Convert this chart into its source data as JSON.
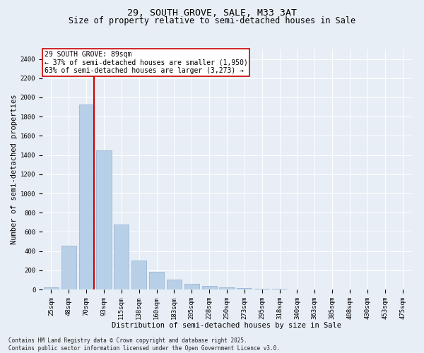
{
  "title": "29, SOUTH GROVE, SALE, M33 3AT",
  "subtitle": "Size of property relative to semi-detached houses in Sale",
  "xlabel": "Distribution of semi-detached houses by size in Sale",
  "ylabel": "Number of semi-detached properties",
  "footer": "Contains HM Land Registry data © Crown copyright and database right 2025.\nContains public sector information licensed under the Open Government Licence v3.0.",
  "categories": [
    "25sqm",
    "48sqm",
    "70sqm",
    "93sqm",
    "115sqm",
    "138sqm",
    "160sqm",
    "183sqm",
    "205sqm",
    "228sqm",
    "250sqm",
    "273sqm",
    "295sqm",
    "318sqm",
    "340sqm",
    "363sqm",
    "385sqm",
    "408sqm",
    "430sqm",
    "453sqm",
    "475sqm"
  ],
  "values": [
    20,
    455,
    1930,
    1450,
    675,
    305,
    185,
    100,
    58,
    35,
    25,
    15,
    10,
    5,
    2,
    1,
    1,
    0,
    0,
    0,
    0
  ],
  "bar_color": "#b8cfe8",
  "bar_edge_color": "#8fb0d4",
  "vline_color": "#cc0000",
  "vline_x_index": 2,
  "annotation_title": "29 SOUTH GROVE: 89sqm",
  "annotation_line1": "← 37% of semi-detached houses are smaller (1,950)",
  "annotation_line2": "63% of semi-detached houses are larger (3,273) →",
  "ylim": [
    0,
    2500
  ],
  "yticks": [
    0,
    200,
    400,
    600,
    800,
    1000,
    1200,
    1400,
    1600,
    1800,
    2000,
    2200,
    2400
  ],
  "bg_color": "#e8eef5",
  "title_fontsize": 9.5,
  "subtitle_fontsize": 8.5,
  "label_fontsize": 7.5,
  "tick_fontsize": 6.5,
  "annot_fontsize": 7,
  "footer_fontsize": 5.5
}
